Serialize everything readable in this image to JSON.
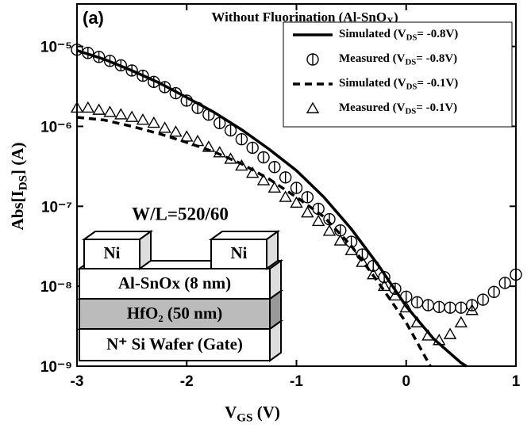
{
  "chart_data": {
    "type": "line",
    "panel_label": "(a)",
    "title": [
      "Without Fluorination (Al-SnO",
      "X",
      ")"
    ],
    "x_label": [
      "V",
      "GS",
      " (V)"
    ],
    "y_label": [
      "Abs[I",
      "DS",
      "] (A)"
    ],
    "log_y": true,
    "xlim": [
      -3,
      1
    ],
    "xticks": [
      -3,
      -2,
      -1,
      0,
      1
    ],
    "ylim": [
      1e-09,
      3.4e-05
    ],
    "yticks": [
      {
        "value": 1e-09,
        "label": "10⁻⁹"
      },
      {
        "value": 1e-08,
        "label": "10⁻⁸"
      },
      {
        "value": 1e-07,
        "label": "10⁻⁷"
      },
      {
        "value": 1e-06,
        "label": "10⁻⁶"
      },
      {
        "value": 1e-05,
        "label": "10⁻⁵"
      }
    ],
    "legend": "upper right",
    "series": [
      {
        "name": [
          "Simulated (V",
          "DS",
          "= -0.8V)"
        ],
        "color": "#000000",
        "linestyle": "solid",
        "x": [
          -3,
          -2.75,
          -2.5,
          -2.25,
          -2,
          -1.75,
          -1.5,
          -1.25,
          -1,
          -0.75,
          -0.5,
          -0.25,
          0,
          0.25,
          0.5,
          0.55
        ],
        "values": [
          8.9e-06,
          6.9e-06,
          5e-06,
          3.5e-06,
          2.3e-06,
          1.5e-06,
          9.1e-07,
          5.2e-07,
          2.8e-07,
          1.3e-07,
          5.2e-08,
          1.8e-08,
          5.6e-09,
          2.2e-09,
          1.1e-09,
          1e-09
        ]
      },
      {
        "name": [
          "Measured (V",
          "DS",
          "= -0.8V)"
        ],
        "color": "#000000",
        "marker": "circle-bar",
        "x": [
          -3,
          -2.9,
          -2.8,
          -2.7,
          -2.6,
          -2.5,
          -2.4,
          -2.3,
          -2.2,
          -2.1,
          -2,
          -1.9,
          -1.8,
          -1.7,
          -1.6,
          -1.5,
          -1.4,
          -1.3,
          -1.2,
          -1.1,
          -1,
          -0.9,
          -0.8,
          -0.7,
          -0.6,
          -0.5,
          -0.4,
          -0.3,
          -0.2,
          -0.1,
          0,
          0.1,
          0.2,
          0.3,
          0.4,
          0.5,
          0.6,
          0.7,
          0.8,
          0.9,
          1
        ],
        "values": [
          9.1e-06,
          8.3e-06,
          7.4e-06,
          6.6e-06,
          5.8e-06,
          5e-06,
          4.3e-06,
          3.6e-06,
          3.1e-06,
          2.6e-06,
          2.1e-06,
          1.7e-06,
          1.4e-06,
          1.1e-06,
          8.9e-07,
          6.9e-07,
          5.4e-07,
          4.1e-07,
          3.1e-07,
          2.3e-07,
          1.7e-07,
          1.3e-07,
          9.3e-08,
          6.9e-08,
          5e-08,
          3.6e-08,
          2.5e-08,
          1.8e-08,
          1.3e-08,
          9.3e-09,
          7.4e-09,
          6.3e-09,
          5.8e-09,
          5.5e-09,
          5.4e-09,
          5.4e-09,
          5.8e-09,
          6.8e-09,
          8.5e-09,
          1.1e-08,
          1.4e-08
        ]
      },
      {
        "name": [
          "Simulated (V",
          "DS",
          "= -0.1V)"
        ],
        "color": "#000000",
        "linestyle": "dashed",
        "x": [
          -3,
          -2.75,
          -2.5,
          -2.25,
          -2,
          -1.75,
          -1.5,
          -1.25,
          -1,
          -0.75,
          -0.5,
          -0.25,
          0,
          0.22
        ],
        "values": [
          1.3e-06,
          1.2e-06,
          1e-06,
          8.1e-07,
          6.3e-07,
          4.8e-07,
          3.4e-07,
          2.2e-07,
          1.3e-07,
          7.4e-08,
          3.2e-08,
          1.1e-08,
          3.5e-09,
          1e-09
        ]
      },
      {
        "name": [
          "Measured (V",
          "DS",
          "= -0.1V)"
        ],
        "color": "#000000",
        "marker": "triangle",
        "x": [
          -3,
          -2.9,
          -2.8,
          -2.7,
          -2.6,
          -2.5,
          -2.4,
          -2.3,
          -2.2,
          -2.1,
          -2,
          -1.9,
          -1.8,
          -1.7,
          -1.6,
          -1.5,
          -1.4,
          -1.3,
          -1.2,
          -1.1,
          -1,
          -0.9,
          -0.8,
          -0.7,
          -0.6,
          -0.5,
          -0.4,
          -0.3,
          -0.2,
          -0.1,
          0,
          0.1,
          0.2,
          0.3,
          0.4,
          0.5,
          0.6
        ],
        "values": [
          1.7e-06,
          1.7e-06,
          1.6e-06,
          1.5e-06,
          1.4e-06,
          1.3e-06,
          1.2e-06,
          1.1e-06,
          9.5e-07,
          8.5e-07,
          7.4e-07,
          6.5e-07,
          5.5e-07,
          4.7e-07,
          3.9e-07,
          3.2e-07,
          2.6e-07,
          2.1e-07,
          1.7e-07,
          1.3e-07,
          1.1e-07,
          8.3e-08,
          6.5e-08,
          4.9e-08,
          3.7e-08,
          2.8e-08,
          2e-08,
          1.4e-08,
          1e-08,
          7.6e-09,
          5.4e-09,
          3.5e-09,
          2.4e-09,
          2.1e-09,
          2.5e-09,
          3.5e-09,
          5e-09
        ]
      }
    ],
    "annotation": "W/L=520/60",
    "inset": {
      "contacts": [
        "Ni",
        "Ni"
      ],
      "layers": [
        "Al-SnOx (8 nm)",
        "HfO₂ (50 nm)",
        "N⁺ Si Wafer (Gate)"
      ]
    }
  }
}
